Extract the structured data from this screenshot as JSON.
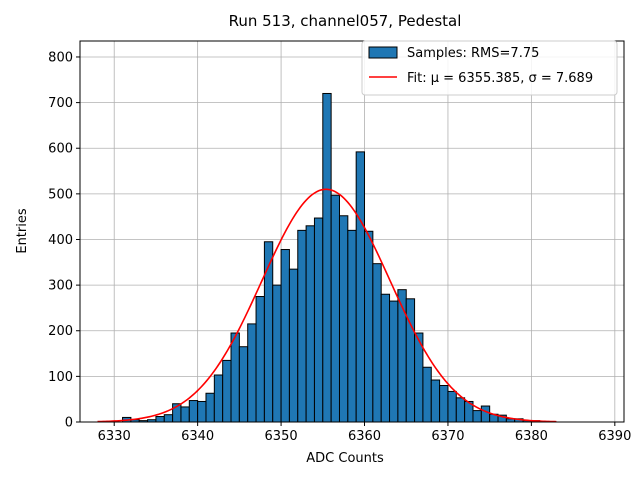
{
  "chart_data": {
    "type": "bar",
    "title": "Run 513, channel057, Pedestal",
    "xlabel": "ADC Counts",
    "ylabel": "Entries",
    "xlim": [
      6325.9,
      6391.1
    ],
    "ylim": [
      0,
      835
    ],
    "xticks": [
      6330,
      6340,
      6350,
      6360,
      6370,
      6380,
      6390
    ],
    "yticks": [
      0,
      100,
      200,
      300,
      400,
      500,
      600,
      700,
      800
    ],
    "grid": true,
    "legend_position": "top-right",
    "bin_width": 1,
    "colors": {
      "bar_fill": "#1f77b4",
      "bar_edge": "#000000",
      "fit_line": "#ff0000",
      "grid": "#b0b0b0"
    },
    "series": [
      {
        "name": "Samples: RMS=7.75",
        "kind": "histogram",
        "bin_starts": [
          6331,
          6332,
          6333,
          6334,
          6335,
          6336,
          6337,
          6338,
          6339,
          6340,
          6341,
          6342,
          6343,
          6344,
          6345,
          6346,
          6347,
          6348,
          6349,
          6350,
          6351,
          6352,
          6353,
          6354,
          6355,
          6356,
          6357,
          6358,
          6359,
          6360,
          6361,
          6362,
          6363,
          6364,
          6365,
          6366,
          6367,
          6368,
          6369,
          6370,
          6371,
          6372,
          6373,
          6374,
          6375,
          6376,
          6377,
          6378,
          6379,
          6380
        ],
        "values": [
          10,
          5,
          3,
          5,
          12,
          16,
          40,
          33,
          47,
          45,
          63,
          103,
          135,
          195,
          165,
          215,
          275,
          395,
          300,
          378,
          335,
          420,
          430,
          447,
          720,
          497,
          452,
          420,
          592,
          418,
          347,
          280,
          265,
          290,
          270,
          195,
          120,
          92,
          80,
          67,
          53,
          45,
          25,
          35,
          17,
          15,
          7,
          7,
          3,
          3
        ]
      },
      {
        "name": "Fit: μ = 6355.385, σ = 7.689",
        "kind": "gaussian",
        "mu": 6355.385,
        "sigma": 7.689,
        "amplitude": 510,
        "x_range": [
          6328,
          6383
        ]
      }
    ]
  }
}
